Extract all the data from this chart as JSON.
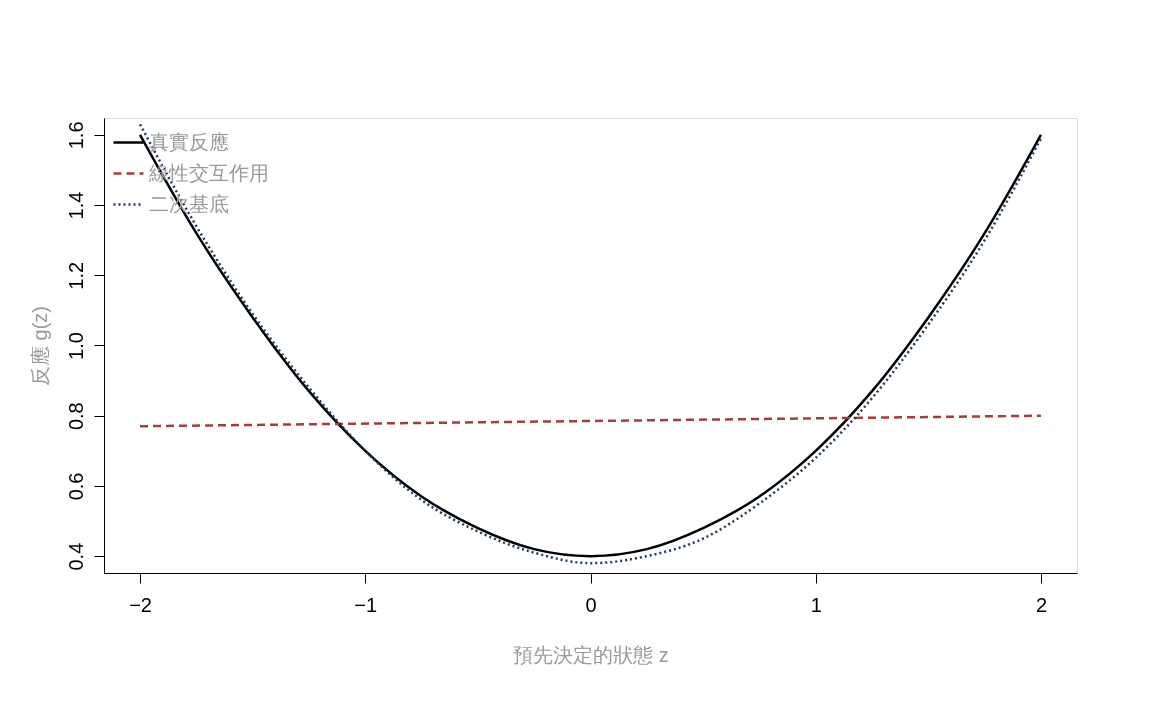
{
  "chart_data": {
    "type": "line",
    "xlabel": "預先決定的狀態 z",
    "ylabel": "反應 g(z)",
    "xlim": [
      -2.16,
      2.16
    ],
    "xticks": [
      -2,
      -1,
      0,
      1,
      2
    ],
    "ylim": [
      0.352,
      1.648
    ],
    "yticks": [
      0.4,
      0.6,
      0.8,
      {
        "value": 1,
        "label": "1.0"
      },
      1.2,
      1.4,
      1.6
    ],
    "grid": false,
    "legend": "top left",
    "series": [
      {
        "name": "真實反應",
        "color": "#000000",
        "line_style": "solid",
        "x": [
          -2,
          -1.75,
          -1.5,
          -1.25,
          -1,
          -0.75,
          -0.5,
          -0.25,
          0,
          0.25,
          0.5,
          0.75,
          1,
          1.25,
          1.5,
          1.75,
          2
        ],
        "values": [
          1.6,
          1.32,
          1.08,
          0.87,
          0.7,
          0.57,
          0.48,
          0.42,
          0.4,
          0.42,
          0.48,
          0.57,
          0.7,
          0.87,
          1.08,
          1.32,
          1.6
        ]
      },
      {
        "name": "線性交互作用",
        "color": "#a83a3a",
        "line_style": "dashed",
        "x": [
          -2,
          2
        ],
        "values": [
          0.77,
          0.8
        ]
      },
      {
        "name": "二次基底",
        "color": "#1b3a5c",
        "line_style": "dotted",
        "x": [
          -2,
          -1.75,
          -1.5,
          -1.25,
          -1,
          -0.75,
          -0.5,
          -0.25,
          0,
          0.25,
          0.5,
          0.75,
          1,
          1.25,
          1.5,
          1.75,
          2
        ],
        "values": [
          1.63,
          1.34,
          1.09,
          0.88,
          0.7,
          0.56,
          0.47,
          0.41,
          0.38,
          0.4,
          0.45,
          0.55,
          0.68,
          0.85,
          1.06,
          1.3,
          1.59
        ]
      }
    ]
  }
}
